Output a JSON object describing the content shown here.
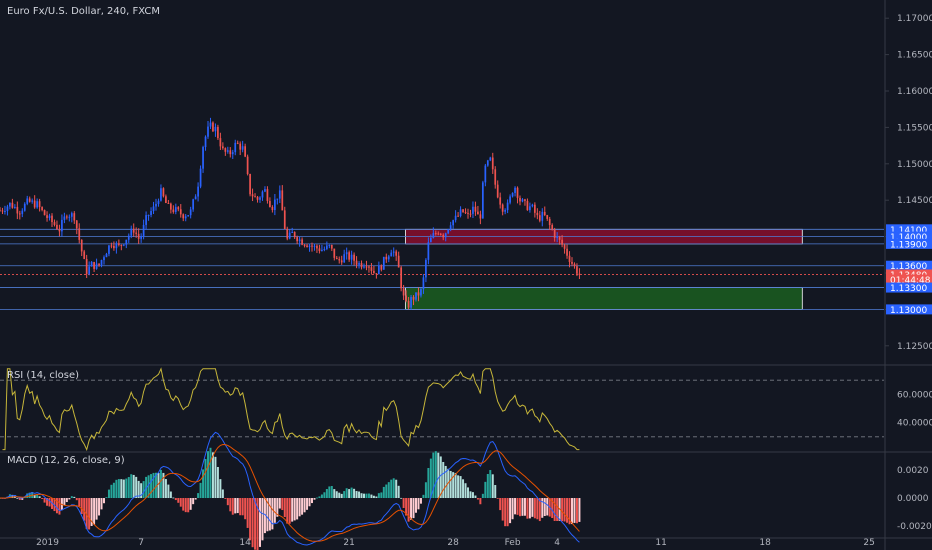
{
  "header": {
    "title": "Euro Fx/U.S. Dollar, 240, FXCM"
  },
  "colors": {
    "background": "#131722",
    "up": "#2962ff",
    "down": "#ef5350",
    "grid": "#1e2230",
    "hline": "#4f7dd6",
    "rsi": "#c6b63a",
    "macd": "#2962ff",
    "signal": "#e65100",
    "supply": "#880e2d",
    "demand": "#1b5e20"
  },
  "chart_data": [
    {
      "type": "candlestick",
      "name": "price",
      "ylim": [
        1.1225,
        1.1725
      ],
      "y_ticks": [
        "1.17000",
        "1.16500",
        "1.16000",
        "1.15500",
        "1.15000",
        "1.14500",
        "1.14000",
        "1.13500",
        "1.13000",
        "1.12500"
      ],
      "x_ticks": [
        {
          "label": "2019",
          "day": 0.7
        },
        {
          "label": "7",
          "day": 7
        },
        {
          "label": "14",
          "day": 14
        },
        {
          "label": "21",
          "day": 21
        },
        {
          "label": "28",
          "day": 28
        },
        {
          "label": "Feb",
          "day": 32
        },
        {
          "label": "4",
          "day": 35
        },
        {
          "label": "11",
          "day": 42
        },
        {
          "label": "18",
          "day": 49
        },
        {
          "label": "25",
          "day": 56
        }
      ],
      "x_range_days": [
        -2.5,
        57
      ],
      "close_path": [
        [
          -2.5,
          1.1436
        ],
        [
          -1.8,
          1.1445
        ],
        [
          -1.2,
          1.1435
        ],
        [
          -0.6,
          1.1448
        ],
        [
          0,
          1.1444
        ],
        [
          0.5,
          1.143
        ],
        [
          1.0,
          1.142
        ],
        [
          1.5,
          1.141
        ],
        [
          2.0,
          1.1432
        ],
        [
          2.5,
          1.1428
        ],
        [
          3.0,
          1.138
        ],
        [
          3.3,
          1.1352
        ],
        [
          3.7,
          1.1362
        ],
        [
          4.1,
          1.1358
        ],
        [
          4.5,
          1.1375
        ],
        [
          5.0,
          1.1392
        ],
        [
          5.5,
          1.1386
        ],
        [
          6.0,
          1.1398
        ],
        [
          6.5,
          1.141
        ],
        [
          6.9,
          1.1395
        ],
        [
          7.4,
          1.1428
        ],
        [
          7.9,
          1.144
        ],
        [
          8.3,
          1.1462
        ],
        [
          8.8,
          1.144
        ],
        [
          9.3,
          1.1436
        ],
        [
          9.8,
          1.143
        ],
        [
          10.3,
          1.1432
        ],
        [
          10.8,
          1.1468
        ],
        [
          11.2,
          1.153
        ],
        [
          11.6,
          1.1552
        ],
        [
          12.0,
          1.1548
        ],
        [
          12.5,
          1.1518
        ],
        [
          12.9,
          1.1512
        ],
        [
          13.4,
          1.1528
        ],
        [
          13.9,
          1.152
        ],
        [
          14.3,
          1.1462
        ],
        [
          14.8,
          1.145
        ],
        [
          15.3,
          1.1465
        ],
        [
          15.8,
          1.144
        ],
        [
          16.3,
          1.1462
        ],
        [
          16.8,
          1.1395
        ],
        [
          17.2,
          1.1405
        ],
        [
          17.7,
          1.1395
        ],
        [
          18.2,
          1.139
        ],
        [
          18.7,
          1.1385
        ],
        [
          19.2,
          1.1382
        ],
        [
          19.7,
          1.1386
        ],
        [
          20.2,
          1.1365
        ],
        [
          20.7,
          1.1374
        ],
        [
          21.2,
          1.137
        ],
        [
          21.7,
          1.1362
        ],
        [
          22.2,
          1.1365
        ],
        [
          22.7,
          1.135
        ],
        [
          23.1,
          1.1358
        ],
        [
          23.5,
          1.1372
        ],
        [
          23.9,
          1.1385
        ],
        [
          24.3,
          1.136
        ],
        [
          24.6,
          1.132
        ],
        [
          24.9,
          1.1302
        ],
        [
          25.2,
          1.1315
        ],
        [
          25.5,
          1.1318
        ],
        [
          25.9,
          1.1326
        ],
        [
          26.3,
          1.1388
        ],
        [
          26.6,
          1.14
        ],
        [
          27.0,
          1.1408
        ],
        [
          27.4,
          1.1402
        ],
        [
          27.8,
          1.142
        ],
        [
          28.2,
          1.1425
        ],
        [
          28.6,
          1.1435
        ],
        [
          29.0,
          1.1428
        ],
        [
          29.4,
          1.144
        ],
        [
          29.8,
          1.1422
        ],
        [
          30.1,
          1.1492
        ],
        [
          30.5,
          1.1505
        ],
        [
          30.9,
          1.1465
        ],
        [
          31.3,
          1.144
        ],
        [
          31.7,
          1.1442
        ],
        [
          32.1,
          1.1472
        ],
        [
          32.5,
          1.145
        ],
        [
          32.9,
          1.1442
        ],
        [
          33.3,
          1.144
        ],
        [
          33.7,
          1.1425
        ],
        [
          34.1,
          1.143
        ],
        [
          34.5,
          1.1415
        ],
        [
          34.9,
          1.14
        ],
        [
          35.3,
          1.139
        ],
        [
          35.7,
          1.1375
        ],
        [
          36.1,
          1.136
        ],
        [
          36.5,
          1.1348
        ]
      ],
      "hlines": [
        1.141,
        1.14,
        1.139,
        1.136,
        1.133,
        1.13
      ],
      "current_price_line": 1.1348,
      "zones": [
        {
          "name": "supply",
          "from_day": 24.8,
          "to_day": 51.5,
          "low": 1.139,
          "high": 1.141
        },
        {
          "name": "demand",
          "from_day": 24.8,
          "to_day": 51.5,
          "low": 1.13,
          "high": 1.133
        }
      ],
      "price_tags": [
        {
          "label": "1.14100",
          "price": 1.141,
          "color": "#2962ff"
        },
        {
          "label": "1.14000",
          "price": 1.14,
          "color": "#2962ff"
        },
        {
          "label": "1.13900",
          "price": 1.139,
          "color": "#2962ff"
        },
        {
          "label": "1.13600",
          "price": 1.136,
          "color": "#2962ff"
        },
        {
          "label": "1.13480",
          "price": 1.1348,
          "color": "#ef5350"
        },
        {
          "label": "01:44:48",
          "price": 1.1341,
          "color": "#ef5350"
        },
        {
          "label": "1.13300",
          "price": 1.133,
          "color": "#2962ff"
        },
        {
          "label": "1.13000",
          "price": 1.13,
          "color": "#2962ff"
        }
      ]
    },
    {
      "type": "line",
      "name": "rsi",
      "label": "RSI (14, close)",
      "ylim": [
        20,
        80
      ],
      "y_ticks": [
        {
          "label": "60.0000",
          "value": 60
        },
        {
          "label": "40.0000",
          "value": 40
        }
      ],
      "bands": [
        70,
        30
      ]
    },
    {
      "type": "bar",
      "name": "macd",
      "label": "MACD (12, 26, close, 9)",
      "ylim": [
        -0.0027,
        0.0032
      ],
      "y_ticks": [
        {
          "label": "0.0020",
          "value": 0.002
        },
        {
          "label": "0.0000",
          "value": 0
        },
        {
          "label": "-0.0020",
          "value": -0.002
        }
      ]
    }
  ]
}
